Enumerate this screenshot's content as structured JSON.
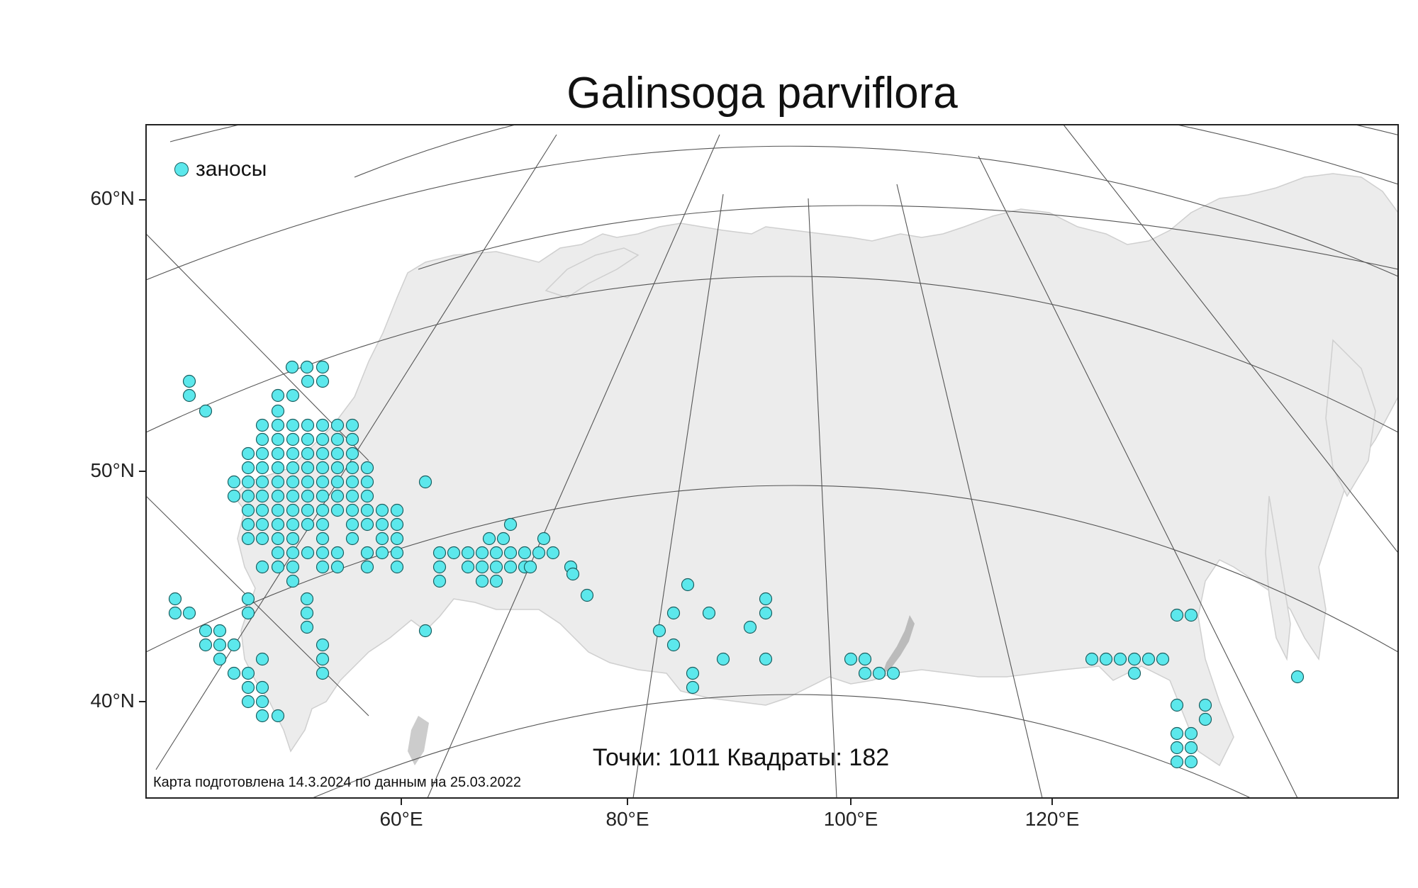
{
  "title": "Galinsoga parviflora",
  "legend": {
    "label": "заносы",
    "icon": "circle-marker-icon",
    "marker_color": "#5ce8ec"
  },
  "stats": {
    "points_label": "Точки:",
    "points": "1011",
    "squares_label": "Квадраты:",
    "squares": "182"
  },
  "credit": "Карта подготовлена 14.3.2024 по данным на 25.03.2022",
  "axes": {
    "lat_labels": [
      "60°N",
      "50°N",
      "40°N"
    ],
    "lon_labels": [
      "60°E",
      "80°E",
      "100°E",
      "120°E"
    ]
  },
  "colors": {
    "land": "#ececec",
    "graticule": "#555555",
    "marker_edge": "#1a5f60"
  }
}
